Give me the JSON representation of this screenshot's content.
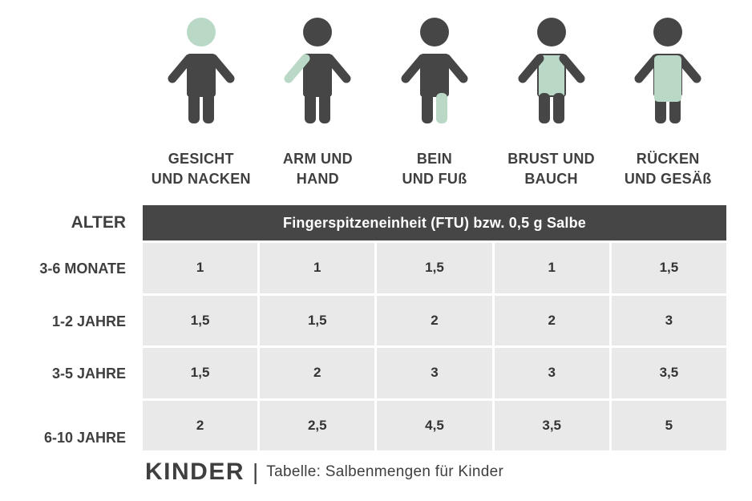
{
  "colors": {
    "figure_dark": "#464646",
    "highlight": "#b9d8c6",
    "header_bg": "#464646",
    "cell_bg": "#e9e9e9"
  },
  "figures": [
    {
      "label": "GESICHT\nUND NACKEN",
      "highlight": "head"
    },
    {
      "label": "ARM UND\nHAND",
      "highlight": "arm"
    },
    {
      "label": "BEIN\nUND FUß",
      "highlight": "leg"
    },
    {
      "label": "BRUST UND\nBAUCH",
      "highlight": "chest"
    },
    {
      "label": "RÜCKEN\nUND GESÄß",
      "highlight": "back"
    }
  ],
  "table": {
    "row_header": "ALTER",
    "column_header": "Fingerspitzeneinheit (FTU) bzw. 0,5 g Salbe",
    "rows": [
      {
        "age": "3-6 MONATE",
        "values": [
          "1",
          "1",
          "1,5",
          "1",
          "1,5"
        ]
      },
      {
        "age": "1-2 JAHRE",
        "values": [
          "1,5",
          "1,5",
          "2",
          "2",
          "3"
        ]
      },
      {
        "age": "3-5 JAHRE",
        "values": [
          "1,5",
          "2",
          "3",
          "3",
          "3,5"
        ]
      },
      {
        "age": "6-10 JAHRE",
        "values": [
          "2",
          "2,5",
          "4,5",
          "3,5",
          "5"
        ]
      }
    ]
  },
  "footer": {
    "brand": "KINDER",
    "separator": "|",
    "caption": "Tabelle: Salbenmengen für Kinder"
  }
}
